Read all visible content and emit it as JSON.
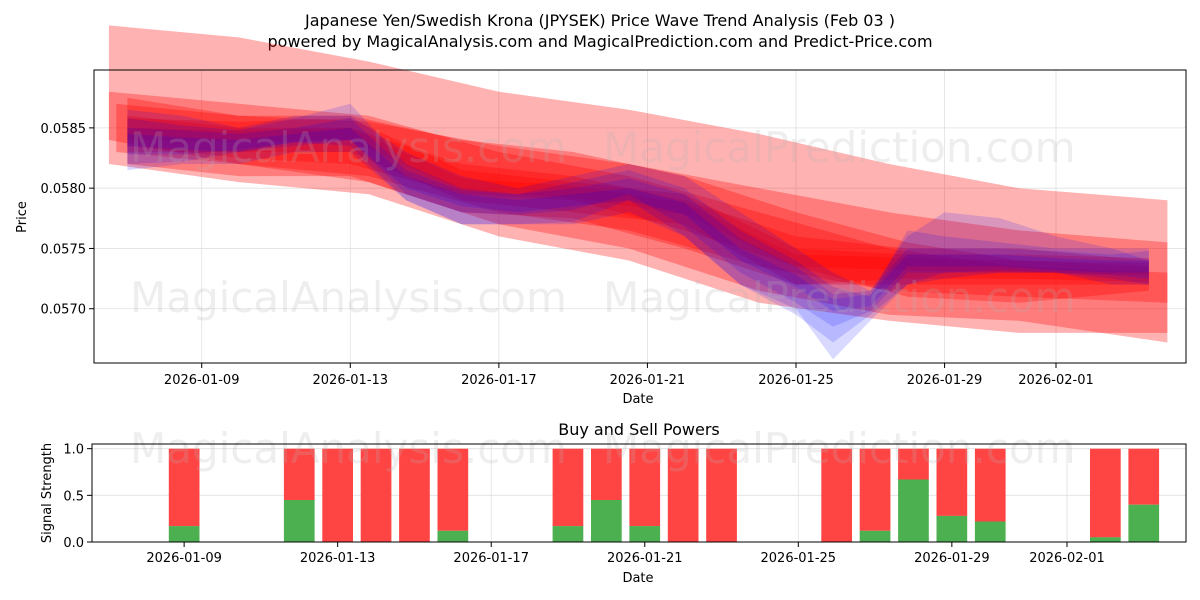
{
  "title_line1": "Japanese Yen/Swedish Krona (JPYSEK) Price Wave Trend Analysis (Feb 03 )",
  "title_line2": "powered by MagicalAnalysis.com and MagicalPrediction.com and Predict-Price.com",
  "watermarks": [
    "MagicalAnalysis.com",
    "MagicalPrediction.com",
    "MagicalAnalysis.com",
    "MagicalPrediction.com",
    "MagicalAnalysis.com",
    "MagicalPrediction.com"
  ],
  "colors": {
    "red": "#ff0000",
    "blue": "#0000ff",
    "buy": "#4caf50",
    "sell": "#ff4444"
  },
  "chart_data": [
    {
      "type": "area",
      "title": "",
      "xlabel": "Date",
      "ylabel": "Price",
      "x_ticks": [
        {
          "day": 2,
          "label": "2026-01-09"
        },
        {
          "day": 6,
          "label": "2026-01-13"
        },
        {
          "day": 10,
          "label": "2026-01-17"
        },
        {
          "day": 14,
          "label": "2026-01-21"
        },
        {
          "day": 18,
          "label": "2026-01-25"
        },
        {
          "day": 22,
          "label": "2026-01-29"
        },
        {
          "day": 25,
          "label": "2026-02-01"
        }
      ],
      "y_ticks": [
        "0.0570",
        "0.0575",
        "0.0580",
        "0.0585"
      ],
      "xlim": [
        -0.9,
        28.5
      ],
      "ylim": [
        0.05655,
        0.05898
      ],
      "grid": true,
      "series": [
        {
          "name": "red-wide-top",
          "color": "red",
          "opacity": 0.3,
          "x": [
            -0.5,
            3,
            6.5,
            10,
            13.5,
            17,
            20.5,
            24,
            28
          ],
          "upper": [
            0.05935,
            0.05925,
            0.05905,
            0.0588,
            0.05865,
            0.05845,
            0.0582,
            0.058,
            0.0579
          ],
          "lower": [
            0.0582,
            0.05805,
            0.05795,
            0.0576,
            0.0574,
            0.05705,
            0.0569,
            0.0568,
            0.0568
          ]
        },
        {
          "name": "red-wide-2",
          "color": "red",
          "opacity": 0.3,
          "x": [
            -0.5,
            3,
            6.5,
            10,
            13.5,
            17,
            20.5,
            24,
            28
          ],
          "upper": [
            0.0588,
            0.0587,
            0.0586,
            0.0583,
            0.0581,
            0.0578,
            0.0575,
            0.05735,
            0.0573
          ],
          "lower": [
            0.0584,
            0.0582,
            0.05805,
            0.0577,
            0.0575,
            0.05715,
            0.05695,
            0.0569,
            0.05672
          ]
        },
        {
          "name": "red-mid",
          "color": "red",
          "opacity": 0.3,
          "x": [
            -0.3,
            3,
            6.5,
            10,
            13.5,
            17,
            20.5,
            24,
            28
          ],
          "upper": [
            0.0587,
            0.0586,
            0.05855,
            0.05835,
            0.0582,
            0.058,
            0.0578,
            0.05765,
            0.05755
          ],
          "lower": [
            0.0583,
            0.0582,
            0.0581,
            0.0578,
            0.05765,
            0.05735,
            0.05715,
            0.0571,
            0.05705
          ]
        },
        {
          "name": "red-inner-1",
          "color": "red",
          "opacity": 0.3,
          "x": [
            0,
            3,
            6,
            9,
            12,
            15,
            18,
            21,
            24,
            27.5
          ],
          "upper": [
            0.05875,
            0.0586,
            0.0586,
            0.0584,
            0.0583,
            0.0581,
            0.0578,
            0.05755,
            0.0574,
            0.05735
          ],
          "lower": [
            0.05835,
            0.05825,
            0.0582,
            0.05795,
            0.0579,
            0.05765,
            0.05735,
            0.0571,
            0.05705,
            0.05715
          ]
        },
        {
          "name": "red-inner-2",
          "color": "red",
          "opacity": 0.3,
          "x": [
            0,
            3,
            6,
            9,
            12,
            15,
            18,
            21,
            24,
            27.5
          ],
          "upper": [
            0.0586,
            0.0585,
            0.0585,
            0.0582,
            0.0581,
            0.0579,
            0.0576,
            0.0575,
            0.0575,
            0.0574
          ],
          "lower": [
            0.0582,
            0.0581,
            0.0581,
            0.0578,
            0.05775,
            0.0575,
            0.0572,
            0.0572,
            0.0572,
            0.0572
          ]
        },
        {
          "name": "red-inner-3",
          "color": "red",
          "opacity": 0.3,
          "x": [
            0,
            3,
            6,
            9,
            12,
            15,
            18,
            21,
            24,
            27.5
          ],
          "upper": [
            0.05858,
            0.05855,
            0.05858,
            0.05815,
            0.05805,
            0.05795,
            0.0575,
            0.05745,
            0.05745,
            0.05742
          ],
          "lower": [
            0.0583,
            0.0583,
            0.0583,
            0.0579,
            0.0578,
            0.0577,
            0.0572,
            0.05725,
            0.05725,
            0.05722
          ]
        },
        {
          "name": "red-core",
          "color": "red",
          "opacity": 0.3,
          "x": [
            0,
            3,
            6,
            9,
            12,
            15,
            18,
            21,
            24,
            27.5
          ],
          "upper": [
            0.0585,
            0.05848,
            0.0585,
            0.05808,
            0.05802,
            0.05788,
            0.05745,
            0.05742,
            0.0574,
            0.05738
          ],
          "lower": [
            0.0584,
            0.05838,
            0.0584,
            0.05798,
            0.05792,
            0.05778,
            0.05735,
            0.05732,
            0.0573,
            0.05728
          ]
        },
        {
          "name": "blue-outer",
          "color": "blue",
          "opacity": 0.15,
          "x": [
            0,
            1.5,
            3,
            4.5,
            6,
            7.5,
            9,
            10.5,
            12,
            13.5,
            15,
            16.5,
            18,
            19,
            20,
            21,
            22,
            23.5,
            25,
            26.5,
            27.5
          ],
          "upper": [
            0.05865,
            0.0586,
            0.0585,
            0.0586,
            0.0586,
            0.0583,
            0.0581,
            0.058,
            0.0581,
            0.0582,
            0.0581,
            0.0578,
            0.0575,
            0.0573,
            0.05715,
            0.0576,
            0.0578,
            0.05775,
            0.0576,
            0.0575,
            0.0574
          ],
          "lower": [
            0.05815,
            0.0582,
            0.0582,
            0.0583,
            0.0583,
            0.0579,
            0.0577,
            0.0577,
            0.0577,
            0.0578,
            0.0576,
            0.0572,
            0.057,
            0.05658,
            0.0569,
            0.0572,
            0.0573,
            0.0573,
            0.0573,
            0.0572,
            0.0572
          ]
        },
        {
          "name": "blue-mid",
          "color": "blue",
          "opacity": 0.15,
          "x": [
            0,
            1.5,
            3,
            4.5,
            6,
            7.5,
            9,
            10.5,
            12,
            13.5,
            15,
            16.5,
            18,
            19,
            20,
            21,
            22,
            23.5,
            25,
            26.5,
            27.5
          ],
          "upper": [
            0.05858,
            0.05852,
            0.05848,
            0.05858,
            0.0587,
            0.0582,
            0.058,
            0.05795,
            0.05805,
            0.05815,
            0.058,
            0.05765,
            0.0574,
            0.05718,
            0.0571,
            0.05765,
            0.0576,
            0.05755,
            0.0575,
            0.0575,
            0.0575
          ],
          "lower": [
            0.0582,
            0.05822,
            0.0583,
            0.05838,
            0.05835,
            0.0579,
            0.0577,
            0.0577,
            0.05772,
            0.0579,
            0.0576,
            0.0572,
            0.05695,
            0.05672,
            0.05695,
            0.0572,
            0.05725,
            0.0573,
            0.0573,
            0.05725,
            0.0572
          ]
        },
        {
          "name": "blue-inner",
          "color": "blue",
          "opacity": 0.15,
          "x": [
            0,
            1.5,
            3,
            4.5,
            6,
            7.5,
            9,
            10.5,
            12,
            13.5,
            15,
            16.5,
            18,
            19,
            20,
            21,
            22,
            23.5,
            25,
            26.5,
            27.5
          ],
          "upper": [
            0.0585,
            0.05848,
            0.05845,
            0.0585,
            0.05858,
            0.05815,
            0.05798,
            0.05795,
            0.058,
            0.05808,
            0.05795,
            0.05758,
            0.05735,
            0.05712,
            0.05715,
            0.0575,
            0.0575,
            0.0575,
            0.05748,
            0.05745,
            0.05748
          ],
          "lower": [
            0.05828,
            0.05828,
            0.05832,
            0.05838,
            0.0584,
            0.05795,
            0.0578,
            0.05778,
            0.05782,
            0.05795,
            0.05768,
            0.0573,
            0.05705,
            0.05685,
            0.05698,
            0.0573,
            0.0573,
            0.05732,
            0.0573,
            0.05728,
            0.05725
          ]
        },
        {
          "name": "blue-core",
          "color": "blue",
          "opacity": 0.15,
          "x": [
            0,
            1.5,
            3,
            4.5,
            6,
            7.5,
            9,
            10.5,
            12,
            13.5,
            15,
            16.5,
            18,
            19,
            20,
            21,
            22,
            23.5,
            25,
            26.5,
            27.5
          ],
          "upper": [
            0.05845,
            0.05842,
            0.0584,
            0.05845,
            0.0585,
            0.0581,
            0.05795,
            0.0579,
            0.05795,
            0.058,
            0.05788,
            0.0575,
            0.05728,
            0.05708,
            0.05712,
            0.05745,
            0.05745,
            0.05745,
            0.05742,
            0.0574,
            0.0574
          ],
          "lower": [
            0.05835,
            0.05832,
            0.0583,
            0.05835,
            0.0584,
            0.058,
            0.05785,
            0.0578,
            0.05785,
            0.0579,
            0.05778,
            0.0574,
            0.05718,
            0.05698,
            0.05702,
            0.05735,
            0.05735,
            0.05735,
            0.05732,
            0.0573,
            0.0573
          ]
        }
      ]
    },
    {
      "type": "bar",
      "title": "Buy and Sell Powers",
      "xlabel": "Date",
      "ylabel": "Signal Strength",
      "x_ticks": [
        {
          "day": 2,
          "label": "2026-01-09"
        },
        {
          "day": 6,
          "label": "2026-01-13"
        },
        {
          "day": 10,
          "label": "2026-01-17"
        },
        {
          "day": 14,
          "label": "2026-01-21"
        },
        {
          "day": 18,
          "label": "2026-01-25"
        },
        {
          "day": 22,
          "label": "2026-01-29"
        },
        {
          "day": 25,
          "label": "2026-02-01"
        }
      ],
      "y_ticks": [
        "0.0",
        "0.5",
        "1.0"
      ],
      "xlim": [
        -0.4,
        28.1
      ],
      "ylim": [
        0,
        1.05
      ],
      "grid": true,
      "series": [
        {
          "name": "Buy",
          "color": "buy"
        },
        {
          "name": "Sell",
          "color": "sell"
        }
      ],
      "bars": [
        {
          "day": 2,
          "buy": 0.17
        },
        {
          "day": 5,
          "buy": 0.45
        },
        {
          "day": 6,
          "buy": 0.0
        },
        {
          "day": 7,
          "buy": 0.0
        },
        {
          "day": 8,
          "buy": 0.0
        },
        {
          "day": 9,
          "buy": 0.12
        },
        {
          "day": 12,
          "buy": 0.17
        },
        {
          "day": 13,
          "buy": 0.45
        },
        {
          "day": 14,
          "buy": 0.17
        },
        {
          "day": 15,
          "buy": 0.0
        },
        {
          "day": 16,
          "buy": 0.0
        },
        {
          "day": 19,
          "buy": 0.0
        },
        {
          "day": 20,
          "buy": 0.12
        },
        {
          "day": 21,
          "buy": 0.67
        },
        {
          "day": 22,
          "buy": 0.28
        },
        {
          "day": 23,
          "buy": 0.22
        },
        {
          "day": 26,
          "buy": 0.05
        },
        {
          "day": 27,
          "buy": 0.4
        }
      ]
    }
  ]
}
